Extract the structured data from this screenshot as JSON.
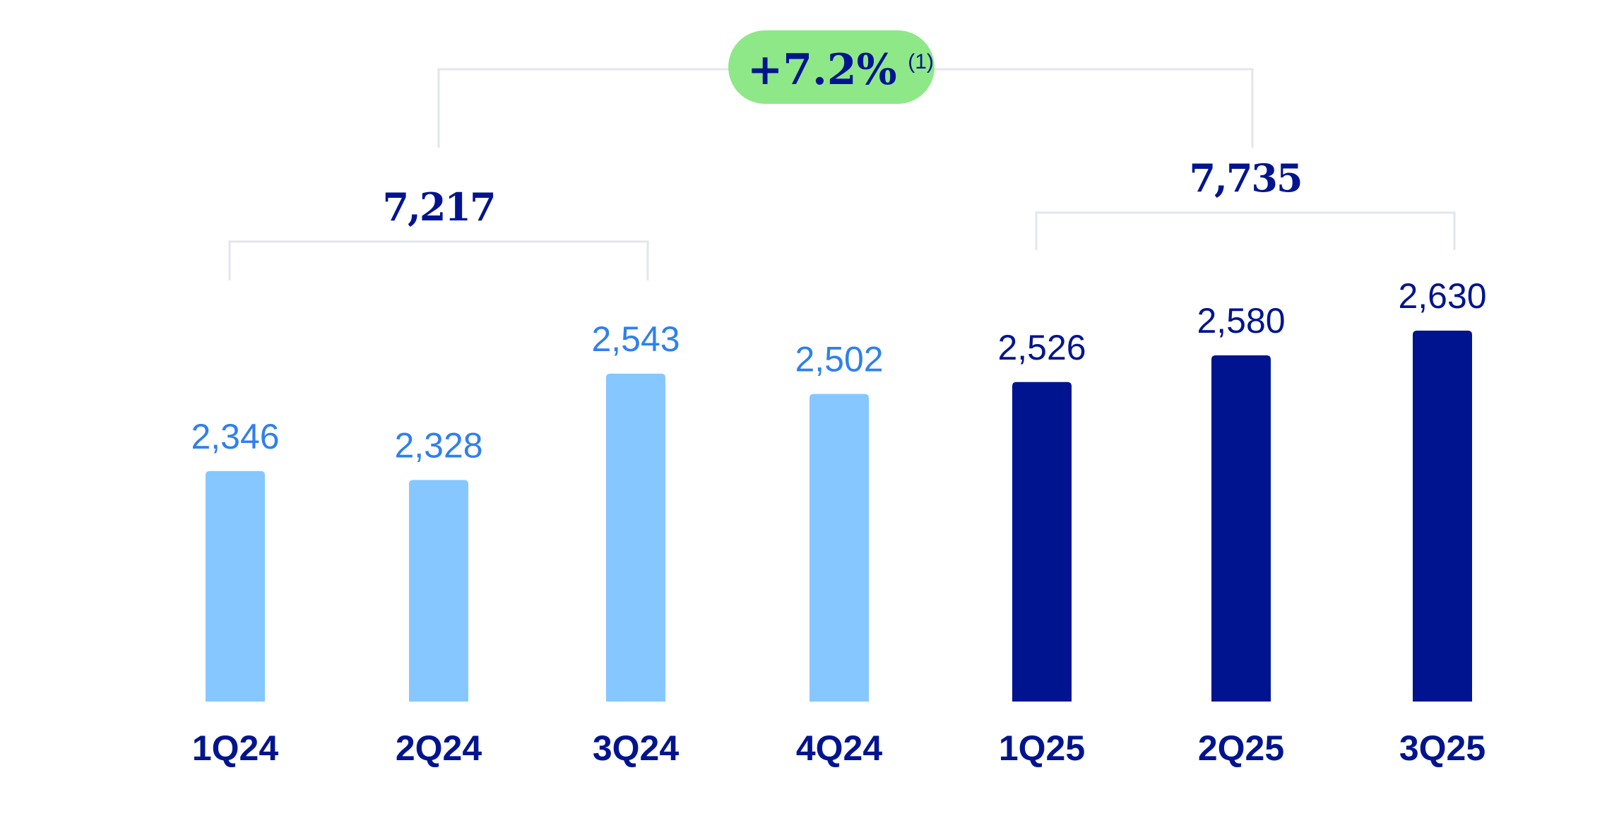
{
  "chart_data": {
    "type": "bar",
    "categories": [
      "1Q24",
      "2Q24",
      "3Q24",
      "4Q24",
      "1Q25",
      "2Q25",
      "3Q25"
    ],
    "values": [
      2346,
      2328,
      2543,
      2502,
      2526,
      2580,
      2630
    ],
    "value_labels": [
      "2,346",
      "2,328",
      "2,543",
      "2,502",
      "2,526",
      "2,580",
      "2,630"
    ],
    "ylim": [
      1880,
      2700
    ],
    "grid": false,
    "colors": {
      "2024": "#87c7ff",
      "2025": "#00148f",
      "label_2024": "#2f80ed",
      "label_2025": "#00148f",
      "bracket": "#e3e6ec",
      "badge": "#8ee887"
    },
    "groups": [
      {
        "label": "7,217",
        "from": 0,
        "to": 2
      },
      {
        "label": "7,735",
        "from": 4,
        "to": 6
      }
    ],
    "comparison": {
      "label": "+7.2%",
      "note": "(1)"
    }
  }
}
